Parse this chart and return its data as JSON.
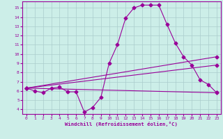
{
  "xlabel": "Windchill (Refroidissement éolien,°C)",
  "bg_color": "#cceee8",
  "line_color": "#990099",
  "grid_color": "#aacccc",
  "xlim": [
    -0.5,
    23.5
  ],
  "ylim": [
    3.5,
    15.7
  ],
  "xticks": [
    0,
    1,
    2,
    3,
    4,
    5,
    6,
    7,
    8,
    9,
    10,
    11,
    12,
    13,
    14,
    15,
    16,
    17,
    18,
    19,
    20,
    21,
    22,
    23
  ],
  "yticks": [
    4,
    5,
    6,
    7,
    8,
    9,
    10,
    11,
    12,
    13,
    14,
    15
  ],
  "line1_x": [
    0,
    1,
    2,
    3,
    4,
    5,
    6,
    7,
    8,
    9,
    10,
    11,
    12,
    13,
    14,
    15,
    16,
    17,
    18,
    19,
    20,
    21,
    22,
    23
  ],
  "line1_y": [
    6.3,
    6.0,
    5.8,
    6.3,
    6.4,
    5.9,
    5.9,
    3.7,
    4.2,
    5.3,
    9.0,
    11.0,
    13.9,
    15.0,
    15.3,
    15.3,
    15.3,
    13.2,
    11.2,
    9.7,
    8.8,
    7.2,
    6.7,
    5.8
  ],
  "line2_x": [
    0,
    23
  ],
  "line2_y": [
    6.3,
    9.7
  ],
  "line3_x": [
    0,
    23
  ],
  "line3_y": [
    6.3,
    8.8
  ],
  "line4_x": [
    0,
    23
  ],
  "line4_y": [
    6.3,
    5.8
  ]
}
